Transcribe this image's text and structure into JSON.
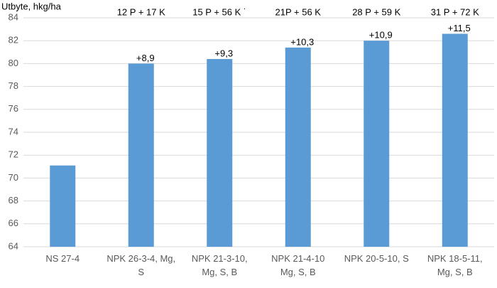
{
  "chart_data": {
    "type": "bar",
    "y_label": "Utbyte, hkg/ha",
    "categories": [
      [
        "NS 27-4"
      ],
      [
        "NPK 26-3-4, Mg,",
        "S"
      ],
      [
        "NPK 21-3-10,",
        "Mg, S, B"
      ],
      [
        "NPK 21-4-10",
        "Mg, S, B"
      ],
      [
        "NPK 20-5-10, S"
      ],
      [
        "NPK 18-5-11,",
        "Mg, S, B"
      ]
    ],
    "values": [
      71.1,
      80.0,
      80.4,
      81.4,
      82.0,
      82.6
    ],
    "color": "#5b9bd5",
    "ylim": [
      64,
      84
    ],
    "yticks": [
      64,
      66,
      68,
      70,
      72,
      74,
      76,
      78,
      80,
      82,
      84
    ],
    "grid": true,
    "annotations": {
      "nutrients": [
        "12 P + 17 K",
        "15 P + 56 K ˙",
        "21P + 56 K",
        "28 P + 59 K",
        "31 P + 72 K"
      ],
      "differences": [
        "+8,9",
        "+9,3",
        "+10,3",
        "+10,9",
        "+11,5"
      ]
    }
  }
}
